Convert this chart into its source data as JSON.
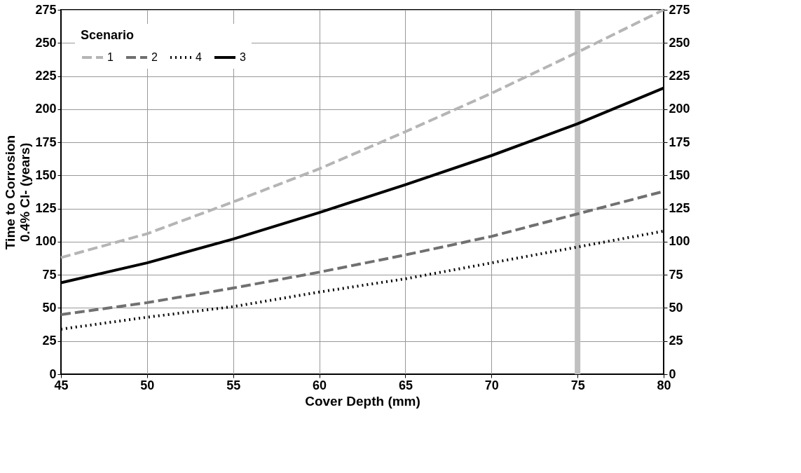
{
  "chart_data": {
    "type": "line",
    "xlabel": "Cover Depth (mm)",
    "ylabel": "Time to Corrosion\n0.4% Cl- (years)",
    "legend_title": "Scenario",
    "x": [
      45,
      50,
      55,
      60,
      65,
      70,
      75,
      80
    ],
    "series": [
      {
        "name": "1",
        "color": "#b5b5b5",
        "line_style": "dashed",
        "values": [
          88,
          106,
          130,
          155,
          183,
          212,
          243,
          275
        ]
      },
      {
        "name": "2",
        "color": "#707070",
        "line_style": "dashed",
        "values": [
          45,
          54,
          65,
          77,
          90,
          104,
          121,
          138
        ]
      },
      {
        "name": "4",
        "color": "#000000",
        "line_style": "dotted",
        "values": [
          34,
          43,
          51,
          62,
          72,
          84,
          96,
          108
        ]
      },
      {
        "name": "3",
        "color": "#000000",
        "line_style": "solid",
        "values": [
          69,
          84,
          102,
          122,
          143,
          165,
          189,
          216
        ]
      }
    ],
    "xlim": [
      45,
      80
    ],
    "xticks": [
      45,
      50,
      55,
      60,
      65,
      70,
      75,
      80
    ],
    "ylim": [
      0,
      275
    ],
    "yticks": [
      0,
      25,
      50,
      75,
      100,
      125,
      150,
      175,
      200,
      225,
      250,
      275
    ],
    "y2lim": [
      0,
      275
    ],
    "y2ticks": [
      0,
      25,
      50,
      75,
      100,
      125,
      150,
      175,
      200,
      225,
      250,
      275
    ],
    "ref_lines": [
      {
        "axis": "x",
        "value": 75,
        "color": "#c0c0c0"
      }
    ],
    "grid": true,
    "legend": "top left"
  }
}
